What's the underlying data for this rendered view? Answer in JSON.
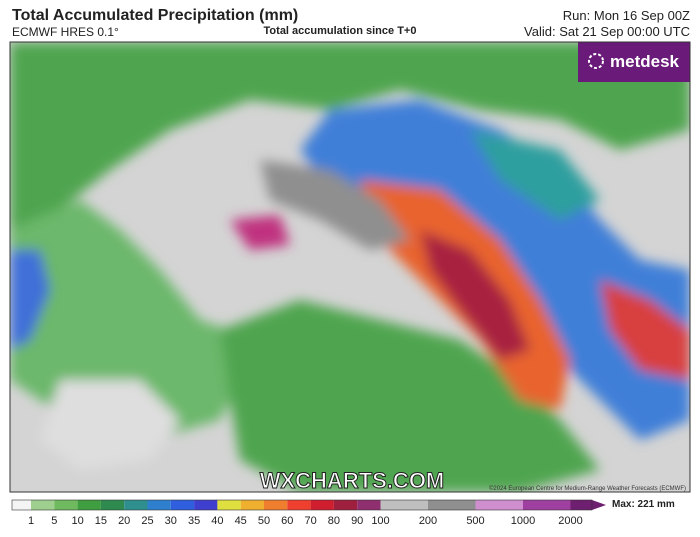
{
  "header": {
    "title": "Total Accumulated Precipitation (mm)",
    "model": "ECMWF HRES 0.1°",
    "subtitle": "Total accumulation since T+0",
    "run": "Run: Mon 16 Sep 00Z",
    "valid": "Valid: Sat 21 Sep 00:00 UTC"
  },
  "map": {
    "logo": "metdesk",
    "watermark": "WXCHARTS.COM",
    "copyright": "©2024 European Centre for Medium-Range Weather Forecasts (ECMWF)"
  },
  "colorbar": {
    "max": "Max: 221 mm",
    "ticks": [
      {
        "label": "1",
        "color": "#9fcf8f"
      },
      {
        "label": "5",
        "color": "#6fba5f"
      },
      {
        "label": "10",
        "color": "#3f9e3f"
      },
      {
        "label": "15",
        "color": "#2f8a4f"
      },
      {
        "label": "20",
        "color": "#2f8f8f"
      },
      {
        "label": "25",
        "color": "#2f7fcf"
      },
      {
        "label": "30",
        "color": "#2f5fdf"
      },
      {
        "label": "35",
        "color": "#3f3fcf"
      },
      {
        "label": "40",
        "color": "#dfdf3f"
      },
      {
        "label": "45",
        "color": "#efaf2f"
      },
      {
        "label": "50",
        "color": "#ef7f2f"
      },
      {
        "label": "60",
        "color": "#ef3f2f"
      },
      {
        "label": "70",
        "color": "#cf1f2f"
      },
      {
        "label": "80",
        "color": "#9f1f3f"
      },
      {
        "label": "90",
        "color": "#8f2f6f"
      },
      {
        "label": "100",
        "color": "#bfbfbf"
      },
      {
        "label": "200",
        "color": "#8f8f8f"
      },
      {
        "label": "500",
        "color": "#cf8fcf"
      },
      {
        "label": "1000",
        "color": "#9f3f9f"
      },
      {
        "label": "2000",
        "color": "#6f1f6f"
      }
    ]
  }
}
